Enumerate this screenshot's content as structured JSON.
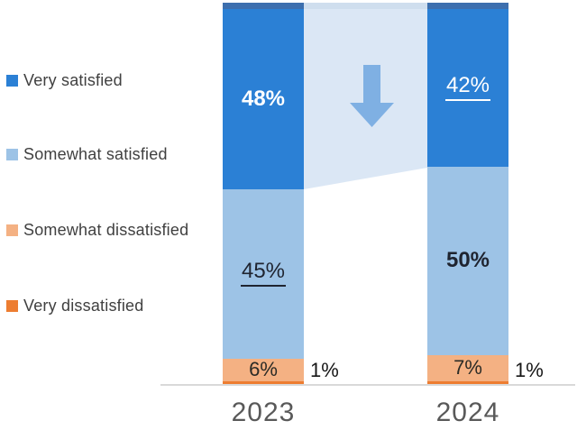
{
  "chart_data": {
    "type": "bar",
    "subtype": "stacked-percentage-columns",
    "title": "",
    "categories": [
      "2023",
      "2024"
    ],
    "series": [
      {
        "name": "Very satisfied",
        "color": "#2b80d5",
        "values": [
          48,
          42
        ]
      },
      {
        "name": "Somewhat satisfied",
        "color": "#9dc3e6",
        "values": [
          45,
          50
        ]
      },
      {
        "name": "Somewhat dissatisfied",
        "color": "#f4b183",
        "values": [
          6,
          7
        ]
      },
      {
        "name": "Very dissatisfied",
        "color": "#ed7d31",
        "values": [
          1,
          1
        ]
      }
    ],
    "bars": [
      {
        "category": "2023",
        "segments": [
          {
            "series": "Very satisfied",
            "value": 48,
            "label": "48%",
            "emphasis": "bold"
          },
          {
            "series": "Somewhat satisfied",
            "value": 45,
            "label": "45%",
            "emphasis": "underline"
          },
          {
            "series": "Somewhat dissatisfied",
            "value": 6,
            "label": "6%",
            "emphasis": "plain"
          },
          {
            "series": "Very dissatisfied",
            "value": 1,
            "label": "1%",
            "emphasis": "outside"
          }
        ]
      },
      {
        "category": "2024",
        "segments": [
          {
            "series": "Very satisfied",
            "value": 42,
            "label": "42%",
            "emphasis": "underline"
          },
          {
            "series": "Somewhat satisfied",
            "value": 50,
            "label": "50%",
            "emphasis": "bold"
          },
          {
            "series": "Somewhat dissatisfied",
            "value": 7,
            "label": "7%",
            "emphasis": "plain"
          },
          {
            "series": "Very dissatisfied",
            "value": 1,
            "label": "1%",
            "emphasis": "outside"
          }
        ]
      }
    ],
    "legend_position": "left",
    "grid": false,
    "ylim": [
      0,
      100
    ],
    "annotations": [
      {
        "type": "down-arrow",
        "meaning": "decrease in Very satisfied from 2023 to 2024"
      }
    ]
  },
  "colors": {
    "very_satisfied": "#2b80d5",
    "somewhat_satisfied": "#9dc3e6",
    "somewhat_dissatisfied": "#f4b183",
    "very_dissatisfied": "#ed7d31",
    "connector_band": "#dbe7f5",
    "connector_band_cap": "#cfdeee",
    "bar_top_cap": "#3d6fae",
    "arrow": "#7fb0e3",
    "axis_line": "#d9d9d9",
    "legend_text": "#404040",
    "category_label": "#595959"
  }
}
